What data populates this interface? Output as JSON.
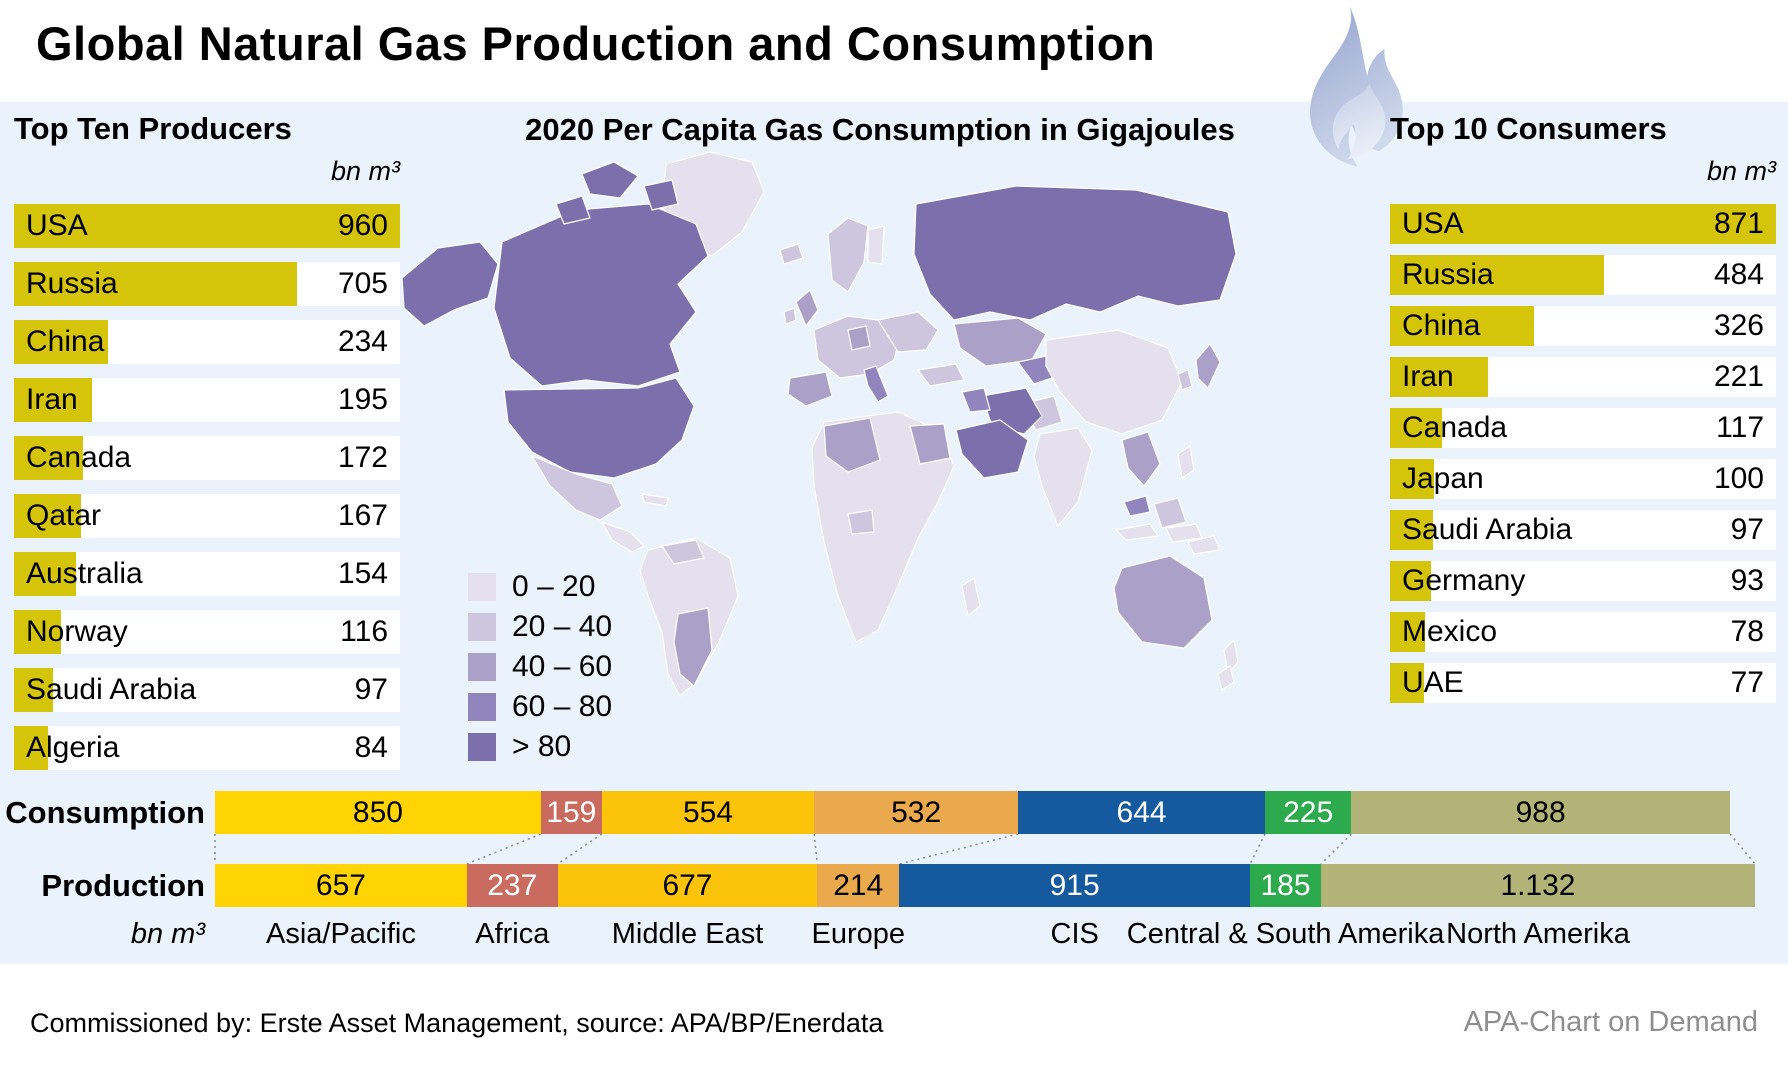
{
  "title": "Global Natural Gas Production and Consumption",
  "palette": {
    "bg-panel": "#eaf3fb",
    "bar-yellow": "#d4c40a",
    "map-c1": "#e4e0ee",
    "map-c2": "#cdc6de",
    "map-c3": "#aaa0c8",
    "map-c4": "#9085bc",
    "map-c5": "#7b70ab",
    "flame-top": "#94a3cd",
    "flame-bottom": "#cfd9ec",
    "flame-inner": "#e2e8f5",
    "footer-gray": "#8e8e8e",
    "connector": "#8a8a8a"
  },
  "producers": {
    "title": "Top Ten Producers",
    "unit": "bn m³",
    "rows": [
      {
        "label": "USA",
        "value": 960
      },
      {
        "label": "Russia",
        "value": 705
      },
      {
        "label": "China",
        "value": 234
      },
      {
        "label": "Iran",
        "value": 195
      },
      {
        "label": "Canada",
        "value": 172
      },
      {
        "label": "Qatar",
        "value": 167
      },
      {
        "label": "Australia",
        "value": 154
      },
      {
        "label": "Norway",
        "value": 116
      },
      {
        "label": "Saudi Arabia",
        "value": 97
      },
      {
        "label": "Algeria",
        "value": 84
      }
    ]
  },
  "consumers": {
    "title": "Top 10 Consumers",
    "unit": "bn m³",
    "rows": [
      {
        "label": "USA",
        "value": 871
      },
      {
        "label": "Russia",
        "value": 484
      },
      {
        "label": "China",
        "value": 326
      },
      {
        "label": "Iran",
        "value": 221
      },
      {
        "label": "Canada",
        "value": 117
      },
      {
        "label": "Japan",
        "value": 100
      },
      {
        "label": "Saudi Arabia",
        "value": 97
      },
      {
        "label": "Germany",
        "value": 93
      },
      {
        "label": "Mexico",
        "value": 78
      },
      {
        "label": "UAE",
        "value": 77
      }
    ]
  },
  "map": {
    "title": "2020 Per Capita Gas Consumption in Gigajoules",
    "legend": [
      {
        "label": "0 – 20",
        "color_key": "map-c1"
      },
      {
        "label": "20 – 40",
        "color_key": "map-c2"
      },
      {
        "label": "40 – 60",
        "color_key": "map-c3"
      },
      {
        "label": "60 – 80",
        "color_key": "map-c4"
      },
      {
        "label": "> 80",
        "color_key": "map-c5"
      }
    ]
  },
  "chart_data": {
    "type": "bar",
    "subtype": "horizontal-stacked-comparison",
    "title": "Consumption vs Production by region",
    "unit_label": "bn m³",
    "categories": [
      "Asia/Pacific",
      "Africa",
      "Middle East",
      "Europe",
      "CIS",
      "Central & South Amerika",
      "North Amerika"
    ],
    "series": [
      {
        "name": "Consumption",
        "values": [
          850,
          159,
          554,
          532,
          644,
          225,
          988
        ],
        "display": [
          "850",
          "159",
          "554",
          "532",
          "644",
          "225",
          "988"
        ]
      },
      {
        "name": "Production",
        "values": [
          657,
          237,
          677,
          214,
          915,
          185,
          1132
        ],
        "display": [
          "657",
          "237",
          "677",
          "214",
          "915",
          "185",
          "1.132"
        ]
      }
    ],
    "region_colors": [
      "#ffd402",
      "#c96b5e",
      "#fcc30b",
      "#e9a94c",
      "#15599e",
      "#2caa4d",
      "#b4b377"
    ],
    "region_text_colors": [
      "#000000",
      "#ffffff",
      "#000000",
      "#000000",
      "#ffffff",
      "#ffffff",
      "#000000"
    ],
    "legend_position": "none",
    "grid": false
  },
  "footer": {
    "left": "Commissioned by: Erste Asset Management, source: APA/BP/Enerdata",
    "right": "APA-Chart on Demand"
  }
}
